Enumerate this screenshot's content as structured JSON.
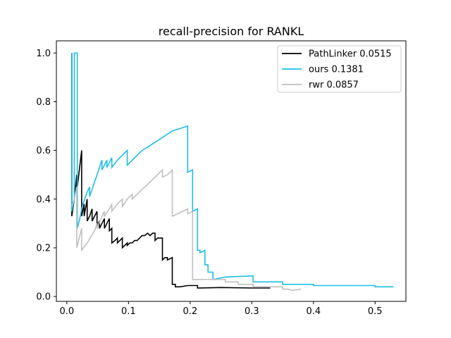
{
  "chart_data": {
    "type": "line",
    "title": "recall-precision for RANKL",
    "xlabel": "",
    "ylabel": "",
    "xlim": [
      -0.017,
      0.55
    ],
    "ylim": [
      -0.02,
      1.05
    ],
    "x_ticks": [
      0.0,
      0.1,
      0.2,
      0.3,
      0.4,
      0.5
    ],
    "x_tick_labels": [
      "0.0",
      "0.1",
      "0.2",
      "0.3",
      "0.4",
      "0.5"
    ],
    "y_ticks": [
      0.0,
      0.2,
      0.4,
      0.6,
      0.8,
      1.0
    ],
    "y_tick_labels": [
      "0.0",
      "0.2",
      "0.4",
      "0.6",
      "0.8",
      "1.0"
    ],
    "grid": false,
    "legend_position": "top-right",
    "series": [
      {
        "name": "PathLinker 0.0515",
        "color": "#000000",
        "points": [
          [
            0.008,
            1.0
          ],
          [
            0.008,
            0.33
          ],
          [
            0.012,
            0.4
          ],
          [
            0.016,
            0.5
          ],
          [
            0.016,
            0.43
          ],
          [
            0.024,
            0.6
          ],
          [
            0.024,
            0.33
          ],
          [
            0.028,
            0.38
          ],
          [
            0.028,
            0.33
          ],
          [
            0.033,
            0.4
          ],
          [
            0.033,
            0.31
          ],
          [
            0.037,
            0.33
          ],
          [
            0.041,
            0.36
          ],
          [
            0.041,
            0.31
          ],
          [
            0.045,
            0.33
          ],
          [
            0.049,
            0.35
          ],
          [
            0.049,
            0.29
          ],
          [
            0.053,
            0.31
          ],
          [
            0.053,
            0.28
          ],
          [
            0.057,
            0.3
          ],
          [
            0.061,
            0.32
          ],
          [
            0.061,
            0.28
          ],
          [
            0.065,
            0.3
          ],
          [
            0.069,
            0.32
          ],
          [
            0.069,
            0.27
          ],
          [
            0.073,
            0.28
          ],
          [
            0.073,
            0.22
          ],
          [
            0.078,
            0.23
          ],
          [
            0.082,
            0.24
          ],
          [
            0.082,
            0.22
          ],
          [
            0.086,
            0.23
          ],
          [
            0.09,
            0.24
          ],
          [
            0.09,
            0.2
          ],
          [
            0.094,
            0.21
          ],
          [
            0.098,
            0.22
          ],
          [
            0.098,
            0.21
          ],
          [
            0.102,
            0.22
          ],
          [
            0.106,
            0.22
          ],
          [
            0.11,
            0.23
          ],
          [
            0.114,
            0.23
          ],
          [
            0.118,
            0.24
          ],
          [
            0.122,
            0.25
          ],
          [
            0.126,
            0.25
          ],
          [
            0.131,
            0.26
          ],
          [
            0.135,
            0.25
          ],
          [
            0.139,
            0.26
          ],
          [
            0.143,
            0.26
          ],
          [
            0.143,
            0.23
          ],
          [
            0.147,
            0.24
          ],
          [
            0.155,
            0.24
          ],
          [
            0.155,
            0.15
          ],
          [
            0.159,
            0.16
          ],
          [
            0.163,
            0.16
          ],
          [
            0.163,
            0.15
          ],
          [
            0.171,
            0.16
          ],
          [
            0.171,
            0.05
          ],
          [
            0.176,
            0.05
          ],
          [
            0.176,
            0.04
          ],
          [
            0.184,
            0.04
          ],
          [
            0.196,
            0.045
          ],
          [
            0.212,
            0.045
          ],
          [
            0.212,
            0.035
          ],
          [
            0.25,
            0.037
          ],
          [
            0.3,
            0.035
          ],
          [
            0.33,
            0.035
          ]
        ]
      },
      {
        "name": "ours 0.1381",
        "color": "#1ebee8",
        "points": [
          [
            0.008,
            1.0
          ],
          [
            0.008,
            0.35
          ],
          [
            0.012,
            0.4
          ],
          [
            0.012,
            1.0
          ],
          [
            0.017,
            1.0
          ],
          [
            0.017,
            0.28
          ],
          [
            0.021,
            0.32
          ],
          [
            0.025,
            0.37
          ],
          [
            0.033,
            0.43
          ],
          [
            0.037,
            0.45
          ],
          [
            0.037,
            0.41
          ],
          [
            0.045,
            0.47
          ],
          [
            0.053,
            0.53
          ],
          [
            0.057,
            0.56
          ],
          [
            0.057,
            0.52
          ],
          [
            0.061,
            0.54
          ],
          [
            0.065,
            0.56
          ],
          [
            0.065,
            0.53
          ],
          [
            0.069,
            0.55
          ],
          [
            0.073,
            0.57
          ],
          [
            0.073,
            0.53
          ],
          [
            0.082,
            0.56
          ],
          [
            0.09,
            0.58
          ],
          [
            0.098,
            0.6
          ],
          [
            0.098,
            0.54
          ],
          [
            0.11,
            0.57
          ],
          [
            0.122,
            0.6
          ],
          [
            0.135,
            0.62
          ],
          [
            0.147,
            0.64
          ],
          [
            0.159,
            0.66
          ],
          [
            0.171,
            0.68
          ],
          [
            0.184,
            0.69
          ],
          [
            0.196,
            0.7
          ],
          [
            0.196,
            0.51
          ],
          [
            0.204,
            0.52
          ],
          [
            0.204,
            0.35
          ],
          [
            0.212,
            0.36
          ],
          [
            0.212,
            0.19
          ],
          [
            0.216,
            0.19
          ],
          [
            0.216,
            0.18
          ],
          [
            0.224,
            0.19
          ],
          [
            0.224,
            0.13
          ],
          [
            0.229,
            0.13
          ],
          [
            0.229,
            0.1
          ],
          [
            0.237,
            0.1
          ],
          [
            0.237,
            0.07
          ],
          [
            0.257,
            0.08
          ],
          [
            0.302,
            0.085
          ],
          [
            0.302,
            0.06
          ],
          [
            0.35,
            0.06
          ],
          [
            0.35,
            0.05
          ],
          [
            0.4,
            0.05
          ],
          [
            0.4,
            0.045
          ],
          [
            0.45,
            0.045
          ],
          [
            0.5,
            0.045
          ],
          [
            0.5,
            0.04
          ],
          [
            0.53,
            0.04
          ]
        ]
      },
      {
        "name": "rwr 0.0857",
        "color": "#c0c0c0",
        "points": [
          [
            0.008,
            0.37
          ],
          [
            0.012,
            0.4
          ],
          [
            0.016,
            0.45
          ],
          [
            0.016,
            0.2
          ],
          [
            0.024,
            0.28
          ],
          [
            0.024,
            0.19
          ],
          [
            0.033,
            0.22
          ],
          [
            0.045,
            0.27
          ],
          [
            0.049,
            0.3
          ],
          [
            0.049,
            0.28
          ],
          [
            0.057,
            0.33
          ],
          [
            0.061,
            0.35
          ],
          [
            0.061,
            0.33
          ],
          [
            0.069,
            0.36
          ],
          [
            0.073,
            0.38
          ],
          [
            0.073,
            0.35
          ],
          [
            0.082,
            0.38
          ],
          [
            0.09,
            0.4
          ],
          [
            0.09,
            0.37
          ],
          [
            0.098,
            0.4
          ],
          [
            0.106,
            0.42
          ],
          [
            0.106,
            0.4
          ],
          [
            0.114,
            0.42
          ],
          [
            0.122,
            0.44
          ],
          [
            0.131,
            0.46
          ],
          [
            0.139,
            0.48
          ],
          [
            0.147,
            0.5
          ],
          [
            0.155,
            0.52
          ],
          [
            0.155,
            0.49
          ],
          [
            0.163,
            0.5
          ],
          [
            0.171,
            0.52
          ],
          [
            0.171,
            0.33
          ],
          [
            0.18,
            0.34
          ],
          [
            0.188,
            0.35
          ],
          [
            0.196,
            0.36
          ],
          [
            0.196,
            0.34
          ],
          [
            0.204,
            0.35
          ],
          [
            0.204,
            0.07
          ],
          [
            0.237,
            0.07
          ],
          [
            0.257,
            0.07
          ],
          [
            0.257,
            0.06
          ],
          [
            0.278,
            0.06
          ],
          [
            0.278,
            0.05
          ],
          [
            0.302,
            0.05
          ],
          [
            0.302,
            0.04
          ],
          [
            0.33,
            0.04
          ],
          [
            0.35,
            0.04
          ],
          [
            0.35,
            0.03
          ],
          [
            0.36,
            0.03
          ],
          [
            0.365,
            0.025
          ],
          [
            0.38,
            0.03
          ]
        ]
      }
    ]
  }
}
